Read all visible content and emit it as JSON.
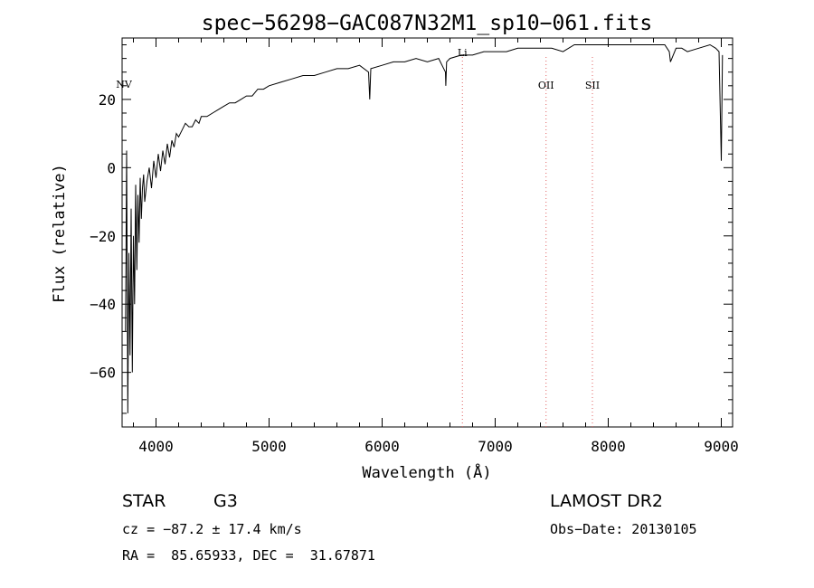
{
  "chart_data": {
    "type": "line",
    "title": "spec−56298−GAC087N32M1_sp10−061.fits",
    "xlabel": "Wavelength (Å)",
    "ylabel": "Flux (relative)",
    "xlim": [
      3700,
      9100
    ],
    "ylim": [
      -76,
      38
    ],
    "xticks": [
      4000,
      5000,
      6000,
      7000,
      8000,
      9000
    ],
    "yticks": [
      -60,
      -40,
      -20,
      0,
      20
    ],
    "xtick_labels": [
      "4000",
      "5000",
      "6000",
      "7000",
      "8000",
      "9000"
    ],
    "ytick_labels": [
      "−60",
      "−40",
      "−20",
      "0",
      "20"
    ],
    "grid": false,
    "legend": "none",
    "line_color": "#000000",
    "marker_color": "#e06060",
    "series": [
      {
        "x": [
          3730,
          3740,
          3750,
          3760,
          3770,
          3780,
          3790,
          3800,
          3810,
          3820,
          3830,
          3840,
          3850,
          3860,
          3870,
          3880,
          3890,
          3900,
          3920,
          3940,
          3960,
          3980,
          4000,
          4020,
          4040,
          4060,
          4080,
          4100,
          4120,
          4140,
          4160,
          4180,
          4200,
          4230,
          4260,
          4290,
          4320,
          4350,
          4380,
          4400,
          4450,
          4500,
          4550,
          4600,
          4650,
          4700,
          4750,
          4800,
          4850,
          4900,
          4950,
          5000,
          5100,
          5200,
          5300,
          5400,
          5500,
          5600,
          5700,
          5800,
          5880,
          5890,
          5900,
          6000,
          6100,
          6200,
          6300,
          6400,
          6500,
          6560,
          6563,
          6570,
          6600,
          6700,
          6800,
          6900,
          7000,
          7100,
          7200,
          7300,
          7400,
          7500,
          7600,
          7700,
          7800,
          7900,
          8000,
          8100,
          8200,
          8300,
          8400,
          8500,
          8540,
          8550,
          8600,
          8650,
          8700,
          8800,
          8900,
          8950,
          8980,
          9000,
          9010
        ],
        "y": [
          -48,
          5,
          -72,
          -25,
          -55,
          -12,
          -60,
          -20,
          -40,
          -5,
          -30,
          -8,
          -22,
          -3,
          -15,
          -6,
          -2,
          -10,
          -4,
          0,
          -6,
          2,
          -3,
          4,
          -1,
          5,
          1,
          7,
          3,
          8,
          6,
          10,
          9,
          11,
          13,
          12,
          12,
          14,
          13,
          15,
          15,
          16,
          17,
          18,
          19,
          19,
          20,
          21,
          21,
          23,
          23,
          24,
          25,
          26,
          27,
          27,
          28,
          29,
          29,
          30,
          28,
          20,
          29,
          30,
          31,
          31,
          32,
          31,
          32,
          28,
          24,
          31,
          32,
          33,
          33,
          34,
          34,
          34,
          35,
          35,
          35,
          35,
          34,
          36,
          36,
          36,
          36,
          36,
          36,
          36,
          36,
          36,
          34,
          31,
          35,
          35,
          34,
          35,
          36,
          35,
          34,
          2,
          33
        ]
      }
    ],
    "line_markers": [
      {
        "label": "NV",
        "x": 3800
      },
      {
        "label": "Li",
        "x": 6710
      },
      {
        "label": "OII",
        "x": 7450
      },
      {
        "label": "SII",
        "x": 7860
      }
    ]
  },
  "footer": {
    "object_class": "STAR",
    "subclass": "G3",
    "survey": "LAMOST DR2",
    "redshift": "cz = −87.2 ± 17.4 km/s",
    "obs_date": "Obs−Date: 20130105",
    "coords": "RA =  85.65933, DEC =  31.67871"
  }
}
